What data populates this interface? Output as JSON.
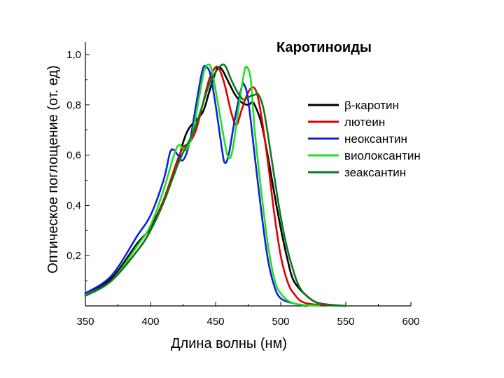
{
  "chart_data": {
    "type": "line",
    "title": "Каротиноиды",
    "xlabel": "Длина волны (нм)",
    "ylabel": "Оптическое поглощение (от. ед)",
    "xlim": [
      350,
      600
    ],
    "ylim": [
      0,
      1.0
    ],
    "x_ticks": [
      "350",
      "400",
      "450",
      "500",
      "550",
      "600"
    ],
    "y_ticks": [
      "0,2",
      "0,4",
      "0,6",
      "0,8",
      "1,0"
    ],
    "grid": false,
    "legend_position": "right",
    "series": [
      {
        "name": "β-каротин",
        "color": "#000000",
        "points": [
          [
            350,
            0.05
          ],
          [
            370,
            0.11
          ],
          [
            390,
            0.25
          ],
          [
            400,
            0.31
          ],
          [
            410,
            0.42
          ],
          [
            420,
            0.55
          ],
          [
            425,
            0.65
          ],
          [
            430,
            0.71
          ],
          [
            440,
            0.77
          ],
          [
            445,
            0.85
          ],
          [
            450,
            0.93
          ],
          [
            452,
            0.95
          ],
          [
            455,
            0.94
          ],
          [
            460,
            0.89
          ],
          [
            465,
            0.84
          ],
          [
            470,
            0.81
          ],
          [
            475,
            0.8
          ],
          [
            478,
            0.81
          ],
          [
            480,
            0.8
          ],
          [
            485,
            0.73
          ],
          [
            490,
            0.6
          ],
          [
            495,
            0.45
          ],
          [
            500,
            0.31
          ],
          [
            505,
            0.19
          ],
          [
            510,
            0.1
          ],
          [
            520,
            0.04
          ],
          [
            530,
            0.01
          ],
          [
            550,
            0.0
          ]
        ]
      },
      {
        "name": "лютеин",
        "color": "#e00000",
        "points": [
          [
            350,
            0.04
          ],
          [
            370,
            0.1
          ],
          [
            390,
            0.22
          ],
          [
            400,
            0.3
          ],
          [
            410,
            0.42
          ],
          [
            420,
            0.57
          ],
          [
            425,
            0.63
          ],
          [
            430,
            0.65
          ],
          [
            435,
            0.7
          ],
          [
            440,
            0.8
          ],
          [
            445,
            0.9
          ],
          [
            450,
            0.95
          ],
          [
            453,
            0.94
          ],
          [
            457,
            0.88
          ],
          [
            462,
            0.77
          ],
          [
            466,
            0.72
          ],
          [
            470,
            0.78
          ],
          [
            475,
            0.85
          ],
          [
            479,
            0.87
          ],
          [
            482,
            0.84
          ],
          [
            485,
            0.76
          ],
          [
            490,
            0.58
          ],
          [
            495,
            0.37
          ],
          [
            500,
            0.2
          ],
          [
            505,
            0.1
          ],
          [
            510,
            0.05
          ],
          [
            520,
            0.01
          ],
          [
            550,
            0.0
          ]
        ]
      },
      {
        "name": "неоксантин",
        "color": "#1020e0",
        "points": [
          [
            350,
            0.05
          ],
          [
            370,
            0.12
          ],
          [
            390,
            0.28
          ],
          [
            400,
            0.36
          ],
          [
            410,
            0.5
          ],
          [
            415,
            0.61
          ],
          [
            418,
            0.62
          ],
          [
            421,
            0.6
          ],
          [
            425,
            0.58
          ],
          [
            430,
            0.65
          ],
          [
            435,
            0.8
          ],
          [
            440,
            0.94
          ],
          [
            443,
            0.95
          ],
          [
            446,
            0.92
          ],
          [
            450,
            0.8
          ],
          [
            455,
            0.62
          ],
          [
            457,
            0.57
          ],
          [
            460,
            0.6
          ],
          [
            465,
            0.75
          ],
          [
            470,
            0.87
          ],
          [
            472,
            0.88
          ],
          [
            475,
            0.82
          ],
          [
            480,
            0.6
          ],
          [
            485,
            0.38
          ],
          [
            490,
            0.19
          ],
          [
            495,
            0.08
          ],
          [
            500,
            0.03
          ],
          [
            510,
            0.01
          ],
          [
            520,
            0.0
          ]
        ]
      },
      {
        "name": "виолоксантин",
        "color": "#20e020",
        "points": [
          [
            350,
            0.04
          ],
          [
            370,
            0.1
          ],
          [
            390,
            0.24
          ],
          [
            400,
            0.32
          ],
          [
            410,
            0.46
          ],
          [
            418,
            0.6
          ],
          [
            422,
            0.64
          ],
          [
            427,
            0.62
          ],
          [
            432,
            0.68
          ],
          [
            437,
            0.82
          ],
          [
            441,
            0.93
          ],
          [
            444,
            0.96
          ],
          [
            447,
            0.94
          ],
          [
            452,
            0.8
          ],
          [
            457,
            0.65
          ],
          [
            460,
            0.59
          ],
          [
            463,
            0.62
          ],
          [
            468,
            0.8
          ],
          [
            472,
            0.93
          ],
          [
            474,
            0.95
          ],
          [
            477,
            0.9
          ],
          [
            480,
            0.7
          ],
          [
            485,
            0.46
          ],
          [
            490,
            0.25
          ],
          [
            495,
            0.11
          ],
          [
            500,
            0.05
          ],
          [
            510,
            0.01
          ],
          [
            530,
            0.0
          ]
        ]
      },
      {
        "name": "зеаксантин",
        "color": "#0a7a1e",
        "points": [
          [
            350,
            0.04
          ],
          [
            370,
            0.1
          ],
          [
            390,
            0.22
          ],
          [
            400,
            0.3
          ],
          [
            410,
            0.41
          ],
          [
            420,
            0.55
          ],
          [
            425,
            0.61
          ],
          [
            430,
            0.66
          ],
          [
            435,
            0.72
          ],
          [
            440,
            0.8
          ],
          [
            445,
            0.88
          ],
          [
            450,
            0.93
          ],
          [
            455,
            0.96
          ],
          [
            458,
            0.95
          ],
          [
            462,
            0.9
          ],
          [
            468,
            0.84
          ],
          [
            472,
            0.82
          ],
          [
            475,
            0.83
          ],
          [
            480,
            0.84
          ],
          [
            483,
            0.84
          ],
          [
            487,
            0.78
          ],
          [
            492,
            0.62
          ],
          [
            497,
            0.45
          ],
          [
            502,
            0.3
          ],
          [
            508,
            0.17
          ],
          [
            515,
            0.07
          ],
          [
            525,
            0.02
          ],
          [
            535,
            0.005
          ],
          [
            550,
            0.0
          ]
        ]
      }
    ]
  }
}
